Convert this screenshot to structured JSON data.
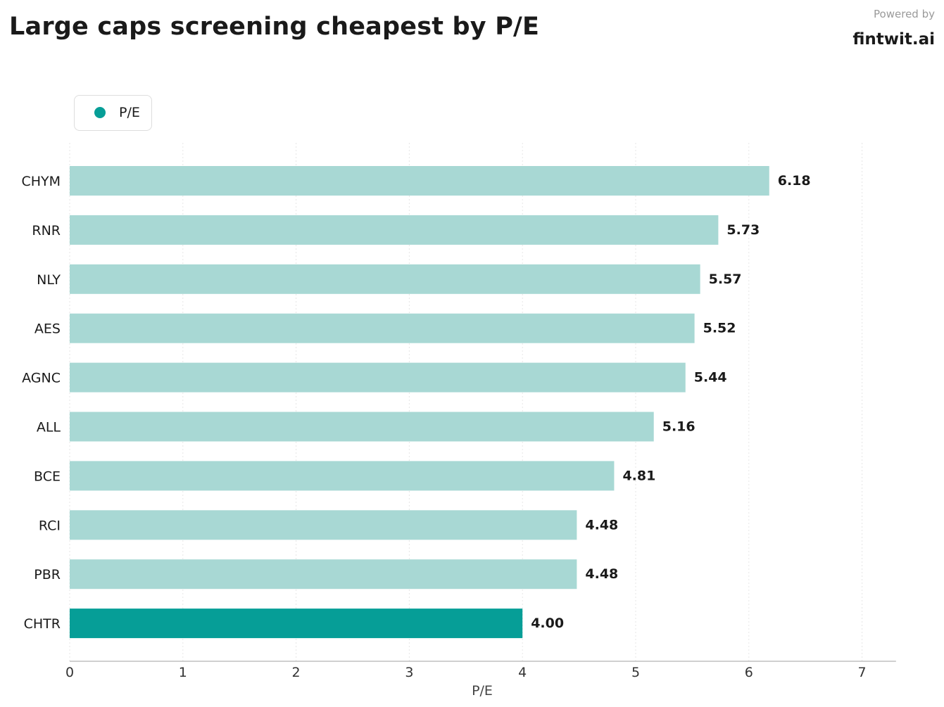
{
  "header": {
    "title": "Large caps screening cheapest by P/E",
    "powered_by": "Powered by",
    "brand": "fintwit.ai"
  },
  "legend": {
    "label": "P/E",
    "color": "#069e97"
  },
  "colors": {
    "highlight": "#069e97",
    "bar": "#a8d8d4",
    "grid": "#e6e6e6",
    "axis": "#b5b5b5"
  },
  "chart_data": {
    "type": "bar",
    "orientation": "horizontal",
    "title": "Large caps screening cheapest by P/E",
    "xlabel": "P/E",
    "ylabel": "",
    "xlim": [
      0,
      7.3
    ],
    "xticks": [
      0,
      1,
      2,
      3,
      4,
      5,
      6,
      7
    ],
    "grid": "vertical dotted",
    "legend_position": "top-left",
    "categories": [
      "CHYM",
      "RNR",
      "NLY",
      "AES",
      "AGNC",
      "ALL",
      "BCE",
      "RCI",
      "PBR",
      "CHTR"
    ],
    "values": [
      6.18,
      5.73,
      5.57,
      5.52,
      5.44,
      5.16,
      4.81,
      4.48,
      4.48,
      4.0
    ],
    "value_labels": [
      "6.18",
      "5.73",
      "5.57",
      "5.52",
      "5.44",
      "5.16",
      "4.81",
      "4.48",
      "4.48",
      "4.00"
    ],
    "highlighted_category": "CHTR"
  }
}
